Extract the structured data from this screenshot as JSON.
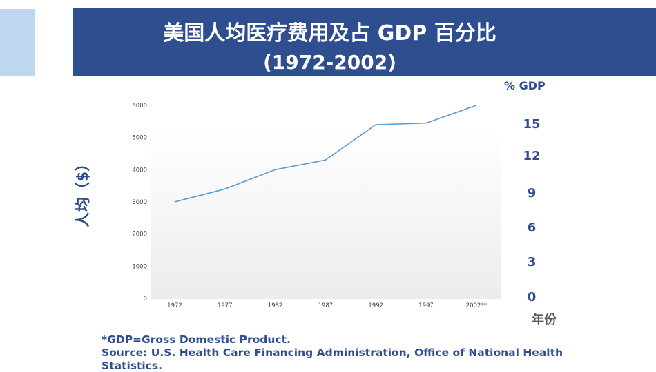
{
  "title": "美国人均医疗费用及占 GDP 百分比",
  "subtitle": "(1972-2002)",
  "chart_data": {
    "type": "line",
    "title": "美国人均医疗费用及占 GDP 百分比",
    "subtitle": "(1972-2002)",
    "categories": [
      "1972",
      "1977",
      "1982",
      "1987",
      "1992",
      "1997",
      "2002**"
    ],
    "series": [
      {
        "values": [
          3000,
          3400,
          4000,
          4300,
          5400,
          5450,
          6000
        ],
        "color": "#5b9bd5"
      }
    ],
    "ylabel": "人均（$）",
    "ylim": [
      0,
      6000
    ],
    "yticks": [
      "0",
      "1000",
      "2000",
      "3000",
      "4000",
      "5000",
      "6000"
    ],
    "secondary_axis": {
      "unit": "%  GDP",
      "ticks": [
        "0",
        "3",
        "6",
        "9",
        "12",
        "15"
      ]
    },
    "xlabel": "年份",
    "grid": false,
    "plot_background": "light gray gradient"
  },
  "footnotes": {
    "line1": "*GDP=Gross Domestic Product.",
    "line2": "Source:  U.S. Health Care Financing Administration, Office of National Health",
    "line3": "Statistics."
  },
  "colors": {
    "banner": "#2e4e8f",
    "accent_block": "#bdd7ee",
    "line": "#5b9bd5",
    "text_primary": "#2e4e8f"
  }
}
